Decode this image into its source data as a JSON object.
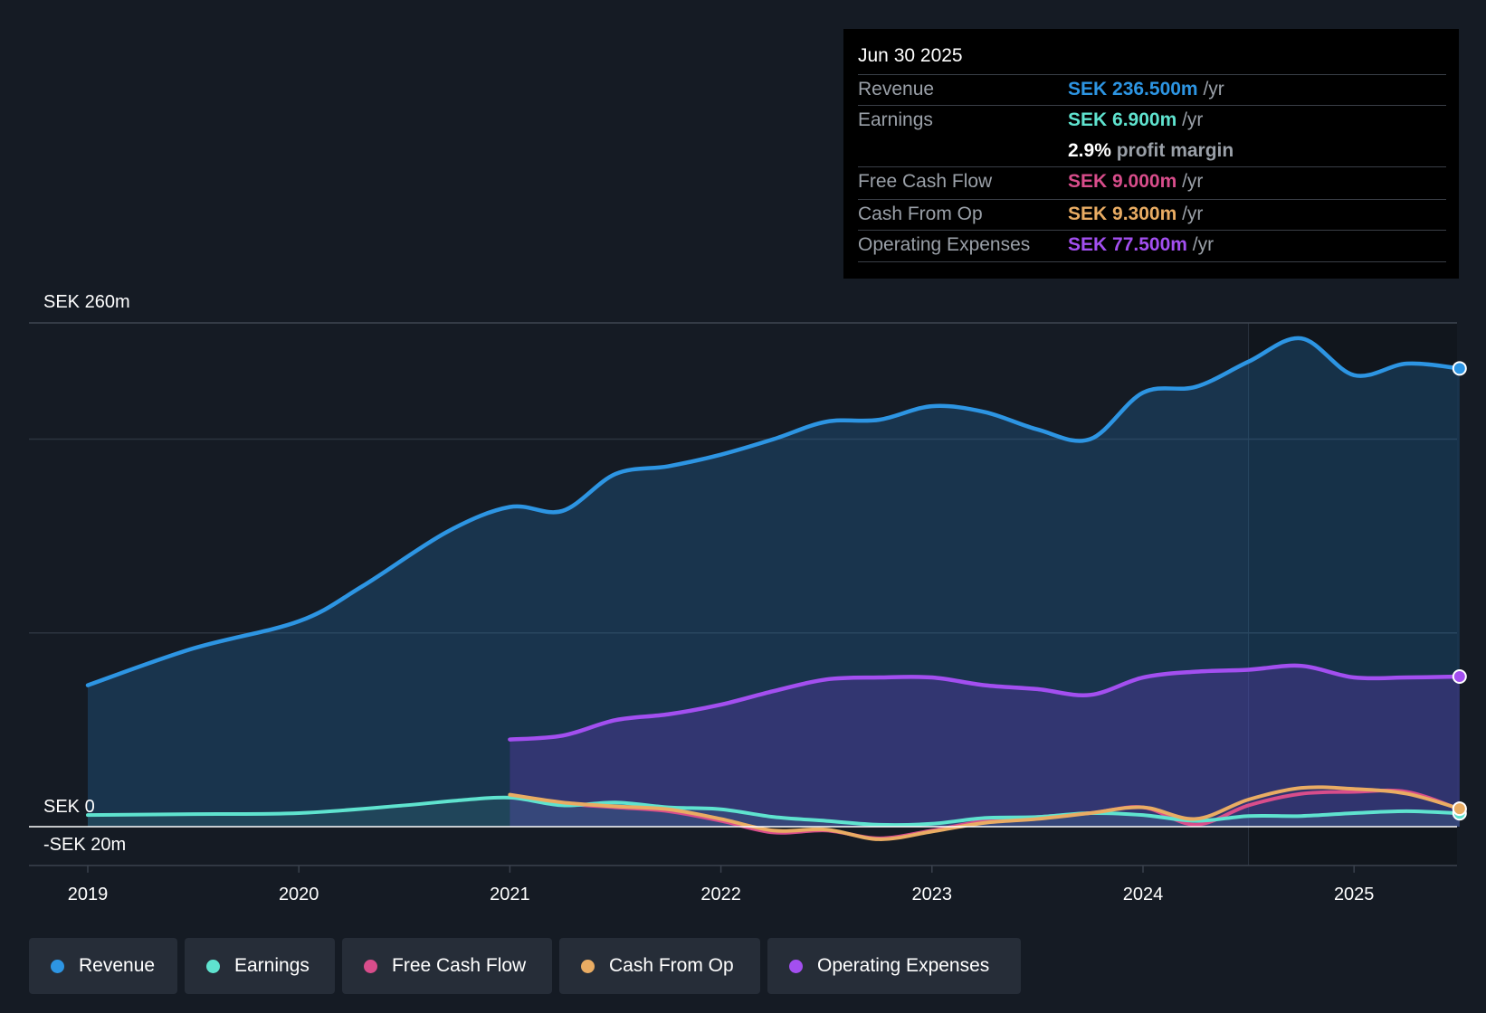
{
  "tooltip": {
    "date": "Jun 30 2025",
    "rows": [
      {
        "label": "Revenue",
        "value": "SEK 236.500m",
        "unit": "/yr",
        "color": "#2d95e3"
      },
      {
        "label": "Earnings",
        "value": "SEK 6.900m",
        "unit": "/yr",
        "color": "#5fe3cf"
      },
      {
        "label": "Free Cash Flow",
        "value": "SEK 9.000m",
        "unit": "/yr",
        "color": "#d84d8b"
      },
      {
        "label": "Cash From Op",
        "value": "SEK 9.300m",
        "unit": "/yr",
        "color": "#e9ac63"
      },
      {
        "label": "Operating Expenses",
        "value": "SEK 77.500m",
        "unit": "/yr",
        "color": "#a34ff0"
      }
    ],
    "profit_margin_value": "2.9%",
    "profit_margin_text": "profit margin"
  },
  "legend": [
    {
      "label": "Revenue",
      "color": "#2d95e3"
    },
    {
      "label": "Earnings",
      "color": "#5fe3cf"
    },
    {
      "label": "Free Cash Flow",
      "color": "#d84d8b"
    },
    {
      "label": "Cash From Op",
      "color": "#e9ac63"
    },
    {
      "label": "Operating Expenses",
      "color": "#a34ff0"
    }
  ],
  "chart_data": {
    "type": "area",
    "title": "",
    "y_top_label": "SEK 260m",
    "y_zero_label": "SEK 0",
    "y_bottom_label": "-SEK 20m",
    "ylim": [
      -20,
      260
    ],
    "xlim": [
      2018.72,
      2025.5
    ],
    "x_ticks": [
      2019,
      2020,
      2021,
      2022,
      2023,
      2024,
      2025
    ],
    "x_tick_labels": [
      "2019",
      "2020",
      "2021",
      "2022",
      "2023",
      "2024",
      "2025"
    ],
    "gridlines": [
      260,
      200,
      100
    ],
    "forecast_start": 2024.5,
    "series": [
      {
        "name": "Revenue",
        "color": "#2d95e3",
        "fill": true,
        "fill_color": "rgba(36,111,171,0.30)",
        "points": [
          [
            2019,
            73
          ],
          [
            2019.5,
            92
          ],
          [
            2020,
            106
          ],
          [
            2020.3,
            124
          ],
          [
            2020.7,
            152
          ],
          [
            2021,
            165
          ],
          [
            2021.25,
            163
          ],
          [
            2021.5,
            182
          ],
          [
            2021.75,
            186
          ],
          [
            2022,
            192
          ],
          [
            2022.25,
            200
          ],
          [
            2022.5,
            209
          ],
          [
            2022.75,
            210
          ],
          [
            2023,
            217
          ],
          [
            2023.25,
            214
          ],
          [
            2023.5,
            205
          ],
          [
            2023.75,
            200
          ],
          [
            2024,
            224
          ],
          [
            2024.25,
            227
          ],
          [
            2024.5,
            240
          ],
          [
            2024.75,
            252
          ],
          [
            2025,
            233
          ],
          [
            2025.25,
            239
          ],
          [
            2025.5,
            236.5
          ]
        ]
      },
      {
        "name": "Operating Expenses",
        "color": "#a34ff0",
        "fill": true,
        "fill_color": "rgba(110,60,200,0.30)",
        "points": [
          [
            2021,
            45
          ],
          [
            2021.25,
            47
          ],
          [
            2021.5,
            55
          ],
          [
            2021.75,
            58
          ],
          [
            2022,
            63
          ],
          [
            2022.25,
            70
          ],
          [
            2022.5,
            76
          ],
          [
            2022.75,
            77
          ],
          [
            2023,
            77
          ],
          [
            2023.25,
            73
          ],
          [
            2023.5,
            71
          ],
          [
            2023.75,
            68
          ],
          [
            2024,
            77
          ],
          [
            2024.25,
            80
          ],
          [
            2024.5,
            81
          ],
          [
            2024.75,
            83
          ],
          [
            2025,
            77
          ],
          [
            2025.25,
            77
          ],
          [
            2025.5,
            77.5
          ]
        ]
      },
      {
        "name": "Earnings",
        "color": "#5fe3cf",
        "fill": false,
        "points": [
          [
            2019,
            6
          ],
          [
            2019.5,
            6.5
          ],
          [
            2020,
            7
          ],
          [
            2020.5,
            11
          ],
          [
            2020.75,
            13.5
          ],
          [
            2021,
            15
          ],
          [
            2021.25,
            11
          ],
          [
            2021.5,
            12.5
          ],
          [
            2021.75,
            10
          ],
          [
            2022,
            9
          ],
          [
            2022.25,
            5
          ],
          [
            2022.5,
            3
          ],
          [
            2022.75,
            1
          ],
          [
            2023,
            1.5
          ],
          [
            2023.25,
            4.5
          ],
          [
            2023.5,
            5
          ],
          [
            2023.75,
            7
          ],
          [
            2024,
            6
          ],
          [
            2024.25,
            3
          ],
          [
            2024.5,
            5.5
          ],
          [
            2024.75,
            5.5
          ],
          [
            2025,
            7
          ],
          [
            2025.25,
            8
          ],
          [
            2025.5,
            6.9
          ]
        ]
      },
      {
        "name": "Free Cash Flow",
        "color": "#d84d8b",
        "fill": false,
        "points": [
          [
            2021,
            16
          ],
          [
            2021.25,
            12
          ],
          [
            2021.5,
            10
          ],
          [
            2021.75,
            8
          ],
          [
            2022,
            3
          ],
          [
            2022.25,
            -3
          ],
          [
            2022.5,
            -2
          ],
          [
            2022.75,
            -6
          ],
          [
            2023,
            -2
          ],
          [
            2023.25,
            3
          ],
          [
            2023.5,
            5
          ],
          [
            2023.75,
            7
          ],
          [
            2024,
            10
          ],
          [
            2024.25,
            1
          ],
          [
            2024.5,
            11
          ],
          [
            2024.75,
            17
          ],
          [
            2025,
            18
          ],
          [
            2025.25,
            18
          ],
          [
            2025.5,
            9
          ]
        ]
      },
      {
        "name": "Cash From Op",
        "color": "#e9ac63",
        "fill": false,
        "points": [
          [
            2021,
            16.5
          ],
          [
            2021.25,
            12.5
          ],
          [
            2021.5,
            10.5
          ],
          [
            2021.75,
            9
          ],
          [
            2022,
            4
          ],
          [
            2022.25,
            -2
          ],
          [
            2022.5,
            -1.5
          ],
          [
            2022.75,
            -6.5
          ],
          [
            2023,
            -2.5
          ],
          [
            2023.25,
            2
          ],
          [
            2023.5,
            4
          ],
          [
            2023.75,
            7
          ],
          [
            2024,
            10
          ],
          [
            2024.25,
            4
          ],
          [
            2024.5,
            14
          ],
          [
            2024.75,
            20
          ],
          [
            2025,
            19.5
          ],
          [
            2025.25,
            17
          ],
          [
            2025.5,
            9.3
          ]
        ]
      }
    ]
  }
}
